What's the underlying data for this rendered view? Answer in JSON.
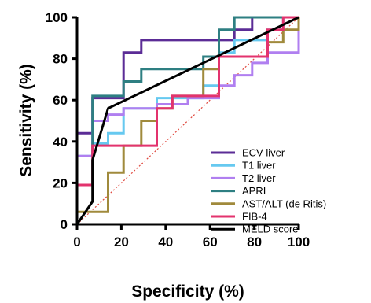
{
  "chart_data": {
    "type": "line",
    "title": "",
    "xlabel": "Specificity (%)",
    "ylabel": "Sensitivity (%)",
    "xlim": [
      0,
      100
    ],
    "ylim": [
      0,
      100
    ],
    "x_ticks": [
      0,
      20,
      40,
      60,
      80,
      100
    ],
    "y_ticks": [
      0,
      20,
      40,
      60,
      80,
      100
    ],
    "grid": false,
    "legend_position": "bottom-right",
    "reference_line": {
      "from": [
        0,
        0
      ],
      "to": [
        100,
        100
      ],
      "color": "#e0463c",
      "style": "dotted"
    },
    "series": [
      {
        "name": "ECV liver",
        "color": "#5b2c96",
        "points": [
          [
            0,
            0
          ],
          [
            0,
            44
          ],
          [
            7,
            44
          ],
          [
            7,
            61
          ],
          [
            21,
            61
          ],
          [
            21,
            83
          ],
          [
            29,
            83
          ],
          [
            29,
            89
          ],
          [
            71,
            89
          ],
          [
            71,
            94
          ],
          [
            79,
            94
          ],
          [
            79,
            100
          ],
          [
            100,
            100
          ]
        ]
      },
      {
        "name": "T1 liver",
        "color": "#66c9f0",
        "points": [
          [
            0,
            0
          ],
          [
            0,
            33
          ],
          [
            7,
            33
          ],
          [
            7,
            39
          ],
          [
            14,
            39
          ],
          [
            14,
            44
          ],
          [
            21,
            44
          ],
          [
            21,
            56
          ],
          [
            36,
            56
          ],
          [
            36,
            61
          ],
          [
            57,
            61
          ],
          [
            57,
            67
          ],
          [
            64,
            67
          ],
          [
            64,
            83
          ],
          [
            71,
            83
          ],
          [
            71,
            89
          ],
          [
            86,
            89
          ],
          [
            86,
            94
          ],
          [
            93,
            94
          ],
          [
            93,
            100
          ],
          [
            100,
            100
          ]
        ]
      },
      {
        "name": "T2 liver",
        "color": "#b07ff0",
        "points": [
          [
            0,
            0
          ],
          [
            0,
            33
          ],
          [
            7,
            33
          ],
          [
            7,
            50
          ],
          [
            14,
            50
          ],
          [
            14,
            53
          ],
          [
            21,
            53
          ],
          [
            21,
            56
          ],
          [
            36,
            56
          ],
          [
            36,
            58
          ],
          [
            50,
            58
          ],
          [
            50,
            61
          ],
          [
            64,
            61
          ],
          [
            64,
            67
          ],
          [
            71,
            67
          ],
          [
            71,
            72
          ],
          [
            79,
            72
          ],
          [
            79,
            78
          ],
          [
            86,
            78
          ],
          [
            86,
            83
          ],
          [
            100,
            83
          ],
          [
            100,
            100
          ]
        ]
      },
      {
        "name": "APRI",
        "color": "#2e7f82",
        "points": [
          [
            0,
            0
          ],
          [
            0,
            19
          ],
          [
            7,
            19
          ],
          [
            7,
            62
          ],
          [
            21,
            62
          ],
          [
            21,
            69
          ],
          [
            29,
            69
          ],
          [
            29,
            75
          ],
          [
            57,
            75
          ],
          [
            57,
            81
          ],
          [
            64,
            81
          ],
          [
            64,
            94
          ],
          [
            71,
            94
          ],
          [
            71,
            100
          ],
          [
            100,
            100
          ]
        ]
      },
      {
        "name": "AST/ALT (de Ritis)",
        "color": "#a08a3c",
        "points": [
          [
            0,
            0
          ],
          [
            0,
            6
          ],
          [
            14,
            6
          ],
          [
            14,
            25
          ],
          [
            21,
            25
          ],
          [
            21,
            38
          ],
          [
            29,
            38
          ],
          [
            29,
            50
          ],
          [
            36,
            50
          ],
          [
            36,
            56
          ],
          [
            43,
            56
          ],
          [
            43,
            62
          ],
          [
            57,
            62
          ],
          [
            57,
            75
          ],
          [
            64,
            75
          ],
          [
            64,
            81
          ],
          [
            86,
            81
          ],
          [
            86,
            88
          ],
          [
            93,
            88
          ],
          [
            93,
            94
          ],
          [
            100,
            94
          ],
          [
            100,
            100
          ]
        ]
      },
      {
        "name": "FIB-4",
        "color": "#e3336e",
        "points": [
          [
            0,
            0
          ],
          [
            0,
            19
          ],
          [
            7,
            19
          ],
          [
            7,
            38
          ],
          [
            36,
            38
          ],
          [
            36,
            56
          ],
          [
            43,
            56
          ],
          [
            43,
            62
          ],
          [
            64,
            62
          ],
          [
            64,
            81
          ],
          [
            86,
            81
          ],
          [
            86,
            94
          ],
          [
            93,
            94
          ],
          [
            93,
            100
          ],
          [
            100,
            100
          ]
        ]
      },
      {
        "name": "MELD score",
        "color": "#000000",
        "points": [
          [
            0,
            0
          ],
          [
            7,
            11
          ],
          [
            7,
            31
          ],
          [
            14,
            56
          ],
          [
            100,
            100
          ]
        ]
      }
    ]
  }
}
